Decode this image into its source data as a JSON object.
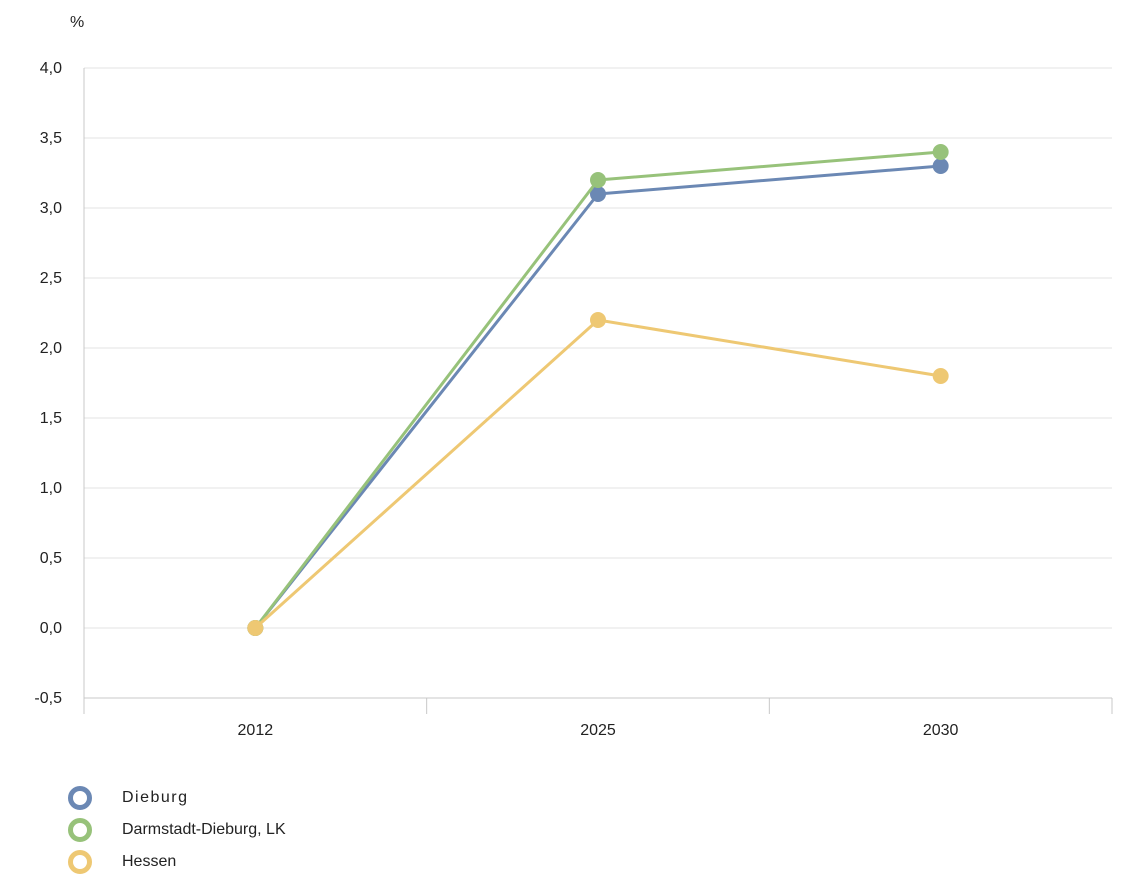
{
  "chart_data": {
    "type": "line",
    "unit_label": "%",
    "categories": [
      "2012",
      "2025",
      "2030"
    ],
    "ylim": [
      -0.5,
      4.0
    ],
    "y_ticks": [
      {
        "value": -0.5,
        "label": "-0,5"
      },
      {
        "value": 0.0,
        "label": "0,0"
      },
      {
        "value": 0.5,
        "label": "0,5"
      },
      {
        "value": 1.0,
        "label": "1,0"
      },
      {
        "value": 1.5,
        "label": "1,5"
      },
      {
        "value": 2.0,
        "label": "2,0"
      },
      {
        "value": 2.5,
        "label": "2,5"
      },
      {
        "value": 3.0,
        "label": "3,0"
      },
      {
        "value": 3.5,
        "label": "3,5"
      },
      {
        "value": 4.0,
        "label": "4,0"
      }
    ],
    "grid": true,
    "legend_position": "bottom-left",
    "series": [
      {
        "name": "Dieburg",
        "color": "#6b88b4",
        "values": [
          0.0,
          3.1,
          3.3
        ]
      },
      {
        "name": "Darmstadt-Dieburg, LK",
        "color": "#97c27a",
        "values": [
          0.0,
          3.2,
          3.4
        ]
      },
      {
        "name": "Hessen",
        "color": "#eec873",
        "values": [
          0.0,
          2.2,
          1.8
        ]
      }
    ]
  }
}
